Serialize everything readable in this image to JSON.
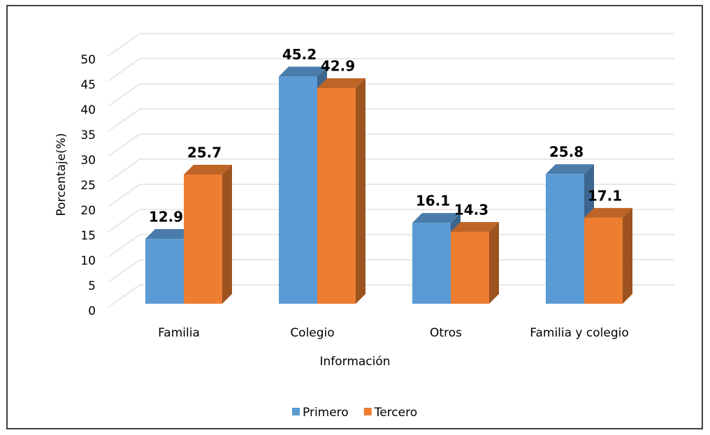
{
  "chart_data": {
    "type": "bar3d",
    "x_label": "Información",
    "y_label": "Porcentaje(%)",
    "categories": [
      "Familia",
      "Colegio",
      "Otros",
      "Familia y colegio"
    ],
    "series": [
      {
        "name": "Primero",
        "color": "#5b9bd5",
        "values": [
          12.9,
          45.2,
          16.1,
          25.8
        ]
      },
      {
        "name": "Tercero",
        "color": "#ed7d31",
        "values": [
          25.7,
          42.9,
          14.3,
          17.1
        ]
      }
    ],
    "ylim": [
      0,
      50
    ],
    "yticks": [
      0,
      5,
      10,
      15,
      20,
      25,
      30,
      35,
      40,
      45,
      50
    ],
    "grid": true,
    "legend": "bottom"
  }
}
